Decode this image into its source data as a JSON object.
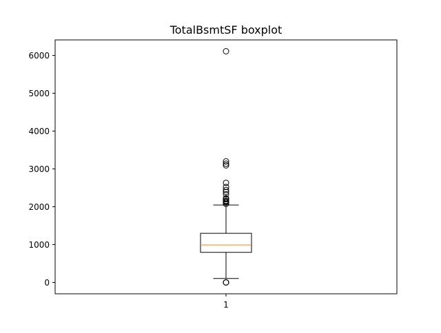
{
  "chart_data": {
    "type": "boxplot",
    "title": "TotalBsmtSF boxplot",
    "xlabel": "",
    "ylabel": "",
    "categories": [
      "1"
    ],
    "ylim": [
      -300,
      6410
    ],
    "yticks": [
      0,
      1000,
      2000,
      3000,
      4000,
      5000,
      6000
    ],
    "grid": false,
    "boxes": [
      {
        "category": "1",
        "whisker_low": 105,
        "q1": 795,
        "median": 991,
        "q3": 1298,
        "whisker_high": 2046,
        "outliers": [
          0,
          0,
          0,
          0,
          2076,
          2110,
          2136,
          2153,
          2158,
          2200,
          2217,
          2223,
          2330,
          2392,
          2444,
          2524,
          2633,
          3094,
          3138,
          3200,
          6110
        ]
      }
    ],
    "colors": {
      "box": "#000000",
      "median": "#ff7f0e",
      "whisker": "#000000",
      "outlier": "#000000"
    }
  }
}
